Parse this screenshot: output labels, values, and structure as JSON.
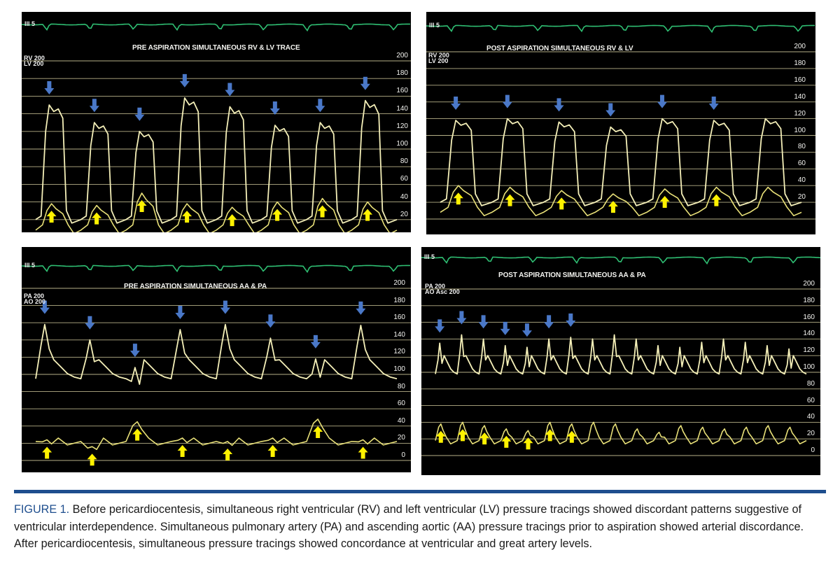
{
  "figure": {
    "panels": [
      {
        "id": "rv-lv-pre",
        "lead_label": "III  5",
        "title": "PRE ASPIRATION SIMULTANEOUS RV & LV TRACE",
        "scale_line1": "RV  200",
        "scale_line2": "LV  200",
        "ticks": [
          "200",
          "180",
          "160",
          "140",
          "120",
          "100",
          "80",
          "60",
          "40",
          "20"
        ],
        "waveform": "ventricular",
        "condition": "pre",
        "upper_trace_peaks": [
          150,
          130,
          120,
          158,
          148,
          127,
          130,
          155
        ],
        "lower_trace_peaks": [
          38,
          36,
          50,
          38,
          34,
          40,
          44,
          40
        ],
        "blue_arrows": 8,
        "yellow_arrows": 8
      },
      {
        "id": "rv-lv-post",
        "lead_label": "III  5",
        "title": "POST ASPIRATION SIMULTANEOUS RV & LV",
        "scale_line1": "RV  200",
        "scale_line2": "LV  200",
        "ticks": [
          "200",
          "180",
          "160",
          "140",
          "120",
          "100",
          "80",
          "60",
          "40",
          "20"
        ],
        "waveform": "ventricular",
        "condition": "post",
        "upper_trace_peaks": [
          118,
          120,
          116,
          110,
          120,
          118,
          120
        ],
        "lower_trace_peaks": [
          40,
          38,
          34,
          30,
          36,
          38,
          38
        ],
        "blue_arrows": 6,
        "yellow_arrows": 6
      },
      {
        "id": "aa-pa-pre",
        "lead_label": "III  5",
        "title": "PRE ASPIRATION SIMULTANEOUS AA & PA",
        "scale_line1": "PA  200",
        "scale_line2": "AO  200",
        "ticks": [
          "200",
          "180",
          "160",
          "140",
          "120",
          "100",
          "80",
          "60",
          "40",
          "20",
          "0"
        ],
        "waveform": "arterial",
        "condition": "pre",
        "upper_trace_peaks": [
          158,
          140,
          108,
          152,
          158,
          142,
          118,
          157
        ],
        "lower_trace_peaks": [
          24,
          16,
          45,
          26,
          22,
          26,
          48,
          24
        ],
        "blue_arrows": 8,
        "yellow_arrows": 8
      },
      {
        "id": "aa-pa-post",
        "lead_label": "III  5",
        "title": "POST ASPIRATION SIMULTANEOUS AA & PA",
        "scale_line1": "PA  200",
        "scale_line2": "AO Asc  200",
        "ticks": [
          "200",
          "180",
          "160",
          "140",
          "120",
          "100",
          "80",
          "60",
          "40",
          "20",
          "0"
        ],
        "waveform": "arterial",
        "condition": "post",
        "upper_trace_peaks": [
          135,
          145,
          140,
          132,
          130,
          140,
          142,
          140,
          145,
          140,
          132,
          130,
          136,
          140,
          136,
          132,
          128
        ],
        "lower_trace_peaks": [
          38,
          40,
          36,
          32,
          30,
          40,
          38,
          40,
          38,
          32,
          28,
          36,
          34,
          32,
          34,
          36,
          34
        ],
        "blue_arrows": 7,
        "yellow_arrows": 7
      }
    ],
    "caption": {
      "label": "FIGURE 1.",
      "text": " Before pericardiocentesis, simultaneous right ventricular (RV) and left ventricular (LV) pressure tracings showed discordant patterns suggestive of ventricular interdependence. Simultaneous pulmonary artery (PA) and ascending aortic (AA) pressure tracings prior to aspiration showed arterial discordance. After pericardiocentesis, simultaneous pressure tracings showed concordance at ventricular and great artery levels."
    },
    "colors": {
      "ecg": "#2fbf73",
      "grid": "#d6d0a0",
      "trace": "#f4efb8",
      "blue_arrow": "#4a78c8",
      "yellow_arrow": "#fff200",
      "rule": "#1e4e8e"
    }
  }
}
